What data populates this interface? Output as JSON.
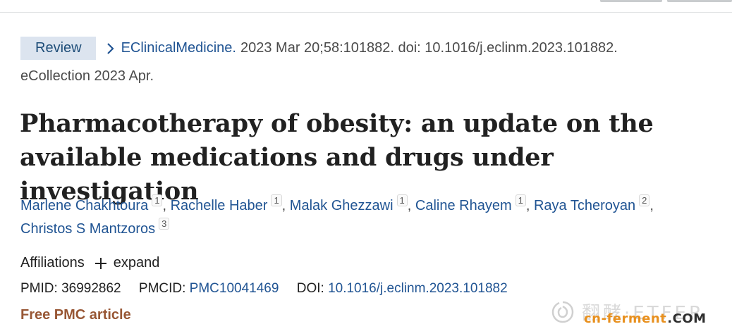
{
  "article": {
    "type_badge": "Review",
    "journal": "EClinicalMedicine.",
    "citation": "2023 Mar 20;58:101882. doi: 10.1016/j.eclinm.2023.101882.",
    "ecollection": "eCollection 2023 Apr.",
    "title": "Pharmacotherapy of obesity: an update on the available medications and drugs under investigation",
    "authors": [
      {
        "name": "Marlene Chakhtoura",
        "aff": "1",
        "sep": ","
      },
      {
        "name": "Rachelle Haber",
        "aff": "1",
        "sep": ","
      },
      {
        "name": "Malak Ghezzawi",
        "aff": "1",
        "sep": ","
      },
      {
        "name": "Caline Rhayem",
        "aff": "1",
        "sep": ","
      },
      {
        "name": "Raya Tcheroyan",
        "aff": "2",
        "sep": ","
      },
      {
        "name": "Christos S Mantzoros",
        "aff": "3",
        "sep": ""
      }
    ],
    "affiliations_label": "Affiliations",
    "expand_label": "expand",
    "pmid_label": "PMID:",
    "pmid": "36992862",
    "pmcid_label": "PMCID:",
    "pmcid": "PMC10041469",
    "doi_label": "DOI:",
    "doi": "10.1016/j.eclinm.2023.101882",
    "free_pmc": "Free PMC article"
  },
  "watermark": {
    "cn_text": "翻酵·ETFER",
    "domain_main": "cn-ferment",
    "domain_tld": ".COM"
  },
  "colors": {
    "link": "#205493",
    "badge_bg": "#dce4ef",
    "free_pmc": "#985735",
    "watermark_orange": "#e8901e"
  },
  "icons": [
    "chevron-right-icon",
    "plus-icon",
    "watermark-logo-icon"
  ]
}
